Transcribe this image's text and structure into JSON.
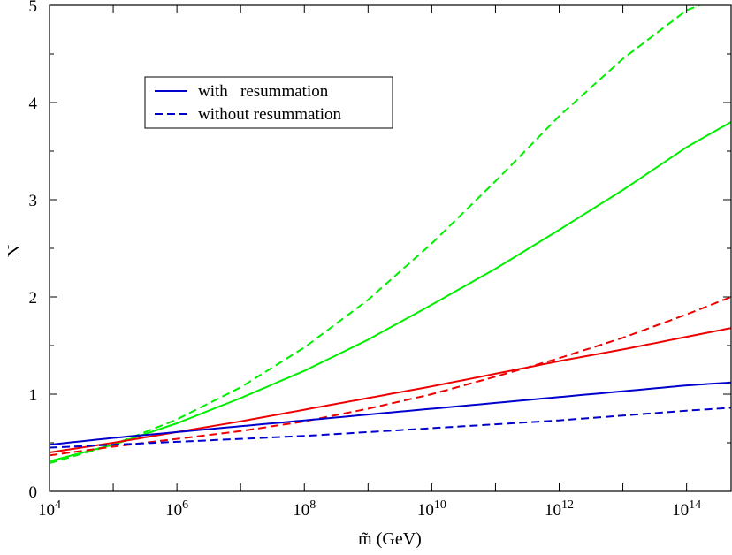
{
  "chart_data": {
    "type": "line",
    "xlabel": "m̃ (GeV)",
    "ylabel": "N",
    "x_scale": "log",
    "xlim": [
      10000,
      500000000000000.0
    ],
    "ylim": [
      0,
      5
    ],
    "x_ticks": [
      {
        "value": 10000,
        "base": "10",
        "exp": "4"
      },
      {
        "value": 1000000,
        "base": "10",
        "exp": "6"
      },
      {
        "value": 100000000,
        "base": "10",
        "exp": "8"
      },
      {
        "value": 10000000000,
        "base": "10",
        "exp": "10"
      },
      {
        "value": 1000000000000,
        "base": "10",
        "exp": "12"
      },
      {
        "value": 100000000000000,
        "base": "10",
        "exp": "14"
      }
    ],
    "y_ticks": [
      {
        "value": 0,
        "label": "0"
      },
      {
        "value": 1,
        "label": "1"
      },
      {
        "value": 2,
        "label": "2"
      },
      {
        "value": 3,
        "label": "3"
      },
      {
        "value": 4,
        "label": "4"
      },
      {
        "value": 5,
        "label": "5"
      }
    ],
    "legend": {
      "placement": "upper-left",
      "entries": [
        {
          "label": "with   resummation",
          "style": "solid",
          "color": "#0000cc"
        },
        {
          "label": "without resummation",
          "style": "dashed",
          "color": "#0000cc"
        }
      ]
    },
    "series": [
      {
        "color": "#00ee00",
        "style": "dashed",
        "x": [
          10000,
          100000,
          1000000,
          10000000,
          100000000,
          1000000000,
          10000000000,
          100000000000,
          1000000000000,
          10000000000000,
          100000000000000,
          160000000000000
        ],
        "y": [
          0.29,
          0.48,
          0.74,
          1.07,
          1.48,
          1.97,
          2.55,
          3.19,
          3.86,
          4.45,
          4.95,
          5.0
        ]
      },
      {
        "color": "#00ee00",
        "style": "solid",
        "x": [
          10000,
          100000,
          1000000,
          10000000,
          100000000,
          1000000000,
          10000000000,
          100000000000,
          1000000000000,
          10000000000000,
          100000000000000,
          500000000000000
        ],
        "y": [
          0.31,
          0.48,
          0.7,
          0.96,
          1.24,
          1.56,
          1.92,
          2.29,
          2.69,
          3.1,
          3.54,
          3.8
        ]
      },
      {
        "color": "#ee0000",
        "style": "dashed",
        "x": [
          10000,
          100000,
          1000000,
          10000000,
          100000000,
          1000000000,
          10000000000,
          100000000000,
          1000000000000,
          10000000000000,
          100000000000000,
          500000000000000
        ],
        "y": [
          0.37,
          0.46,
          0.54,
          0.62,
          0.72,
          0.85,
          1.0,
          1.18,
          1.37,
          1.58,
          1.82,
          2.0
        ]
      },
      {
        "color": "#ee0000",
        "style": "solid",
        "x": [
          10000,
          100000,
          1000000,
          10000000,
          100000000,
          1000000000,
          10000000000,
          100000000000,
          1000000000000,
          10000000000000,
          100000000000000,
          500000000000000
        ],
        "y": [
          0.4,
          0.5,
          0.61,
          0.72,
          0.84,
          0.96,
          1.08,
          1.21,
          1.34,
          1.46,
          1.59,
          1.68
        ]
      },
      {
        "color": "#0000cc",
        "style": "solid",
        "x": [
          10000,
          100000,
          1000000,
          10000000,
          100000000,
          1000000000,
          10000000000,
          100000000000,
          1000000000000,
          10000000000000,
          100000000000000,
          500000000000000
        ],
        "y": [
          0.48,
          0.55,
          0.61,
          0.67,
          0.73,
          0.79,
          0.85,
          0.91,
          0.97,
          1.03,
          1.09,
          1.12
        ]
      },
      {
        "color": "#0000cc",
        "style": "dashed",
        "x": [
          10000,
          100000,
          1000000,
          10000000,
          100000000,
          1000000000,
          10000000000,
          100000000000,
          1000000000000,
          10000000000000,
          100000000000000,
          500000000000000
        ],
        "y": [
          0.45,
          0.48,
          0.51,
          0.54,
          0.57,
          0.61,
          0.65,
          0.69,
          0.73,
          0.78,
          0.83,
          0.86
        ]
      }
    ]
  }
}
